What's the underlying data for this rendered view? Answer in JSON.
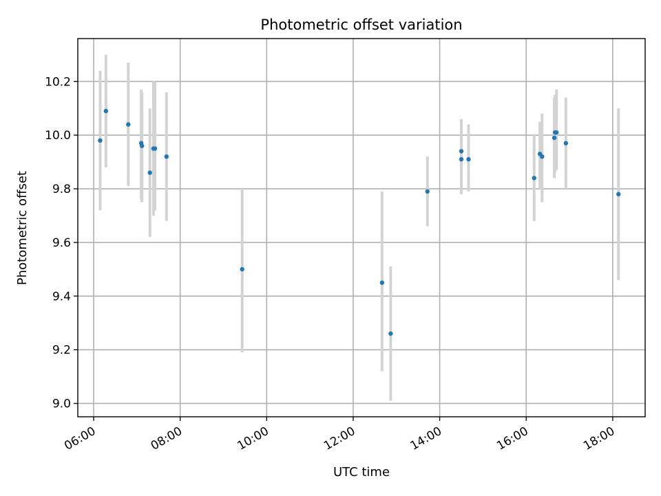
{
  "chart_data": {
    "type": "scatter",
    "title": "Photometric offset variation",
    "xlabel": "UTC time",
    "ylabel": "Photometric offset",
    "x_ticks": [
      "06:00",
      "08:00",
      "10:00",
      "12:00",
      "14:00",
      "16:00",
      "18:00"
    ],
    "y_ticks": [
      "9.0",
      "9.2",
      "9.4",
      "9.6",
      "9.8",
      "10.0",
      "10.2"
    ],
    "xlim": [
      "05:38",
      "18:45"
    ],
    "ylim": [
      8.95,
      10.36
    ],
    "grid": true,
    "colors": {
      "point": "#1f77b4",
      "error_bar": "#d3d3d3",
      "grid": "#b0b0b0"
    },
    "points": [
      {
        "x": "06:09",
        "y": 9.98,
        "yerr_low": 9.72,
        "yerr_high": 10.24
      },
      {
        "x": "06:17",
        "y": 10.09,
        "yerr_low": 9.88,
        "yerr_high": 10.3
      },
      {
        "x": "06:48",
        "y": 10.04,
        "yerr_low": 9.81,
        "yerr_high": 10.27
      },
      {
        "x": "07:06",
        "y": 9.97,
        "yerr_low": 9.76,
        "yerr_high": 10.17
      },
      {
        "x": "07:07",
        "y": 9.96,
        "yerr_low": 9.75,
        "yerr_high": 10.16
      },
      {
        "x": "07:18",
        "y": 9.86,
        "yerr_low": 9.62,
        "yerr_high": 10.1
      },
      {
        "x": "07:23",
        "y": 9.95,
        "yerr_low": 9.7,
        "yerr_high": 10.2
      },
      {
        "x": "07:25",
        "y": 9.95,
        "yerr_low": 9.72,
        "yerr_high": 10.2
      },
      {
        "x": "07:41",
        "y": 9.92,
        "yerr_low": 9.68,
        "yerr_high": 10.16
      },
      {
        "x": "09:26",
        "y": 9.5,
        "yerr_low": 9.19,
        "yerr_high": 9.8
      },
      {
        "x": "12:40",
        "y": 9.45,
        "yerr_low": 9.12,
        "yerr_high": 9.79
      },
      {
        "x": "12:52",
        "y": 9.26,
        "yerr_low": 9.01,
        "yerr_high": 9.51
      },
      {
        "x": "13:43",
        "y": 9.79,
        "yerr_low": 9.66,
        "yerr_high": 9.92
      },
      {
        "x": "14:30",
        "y": 9.94,
        "yerr_low": 9.82,
        "yerr_high": 10.06
      },
      {
        "x": "14:30",
        "y": 9.91,
        "yerr_low": 9.78,
        "yerr_high": 10.04
      },
      {
        "x": "14:40",
        "y": 9.91,
        "yerr_low": 9.79,
        "yerr_high": 10.04
      },
      {
        "x": "16:11",
        "y": 9.84,
        "yerr_low": 9.68,
        "yerr_high": 10.0
      },
      {
        "x": "16:19",
        "y": 9.93,
        "yerr_low": 9.8,
        "yerr_high": 10.05
      },
      {
        "x": "16:22",
        "y": 9.92,
        "yerr_low": 9.75,
        "yerr_high": 10.08
      },
      {
        "x": "16:39",
        "y": 9.99,
        "yerr_low": 9.84,
        "yerr_high": 10.14
      },
      {
        "x": "16:40",
        "y": 10.01,
        "yerr_low": 9.86,
        "yerr_high": 10.15
      },
      {
        "x": "16:42",
        "y": 10.01,
        "yerr_low": 9.87,
        "yerr_high": 10.17
      },
      {
        "x": "16:55",
        "y": 9.97,
        "yerr_low": 9.8,
        "yerr_high": 10.14
      },
      {
        "x": "18:08",
        "y": 9.78,
        "yerr_low": 9.46,
        "yerr_high": 10.1
      }
    ]
  }
}
